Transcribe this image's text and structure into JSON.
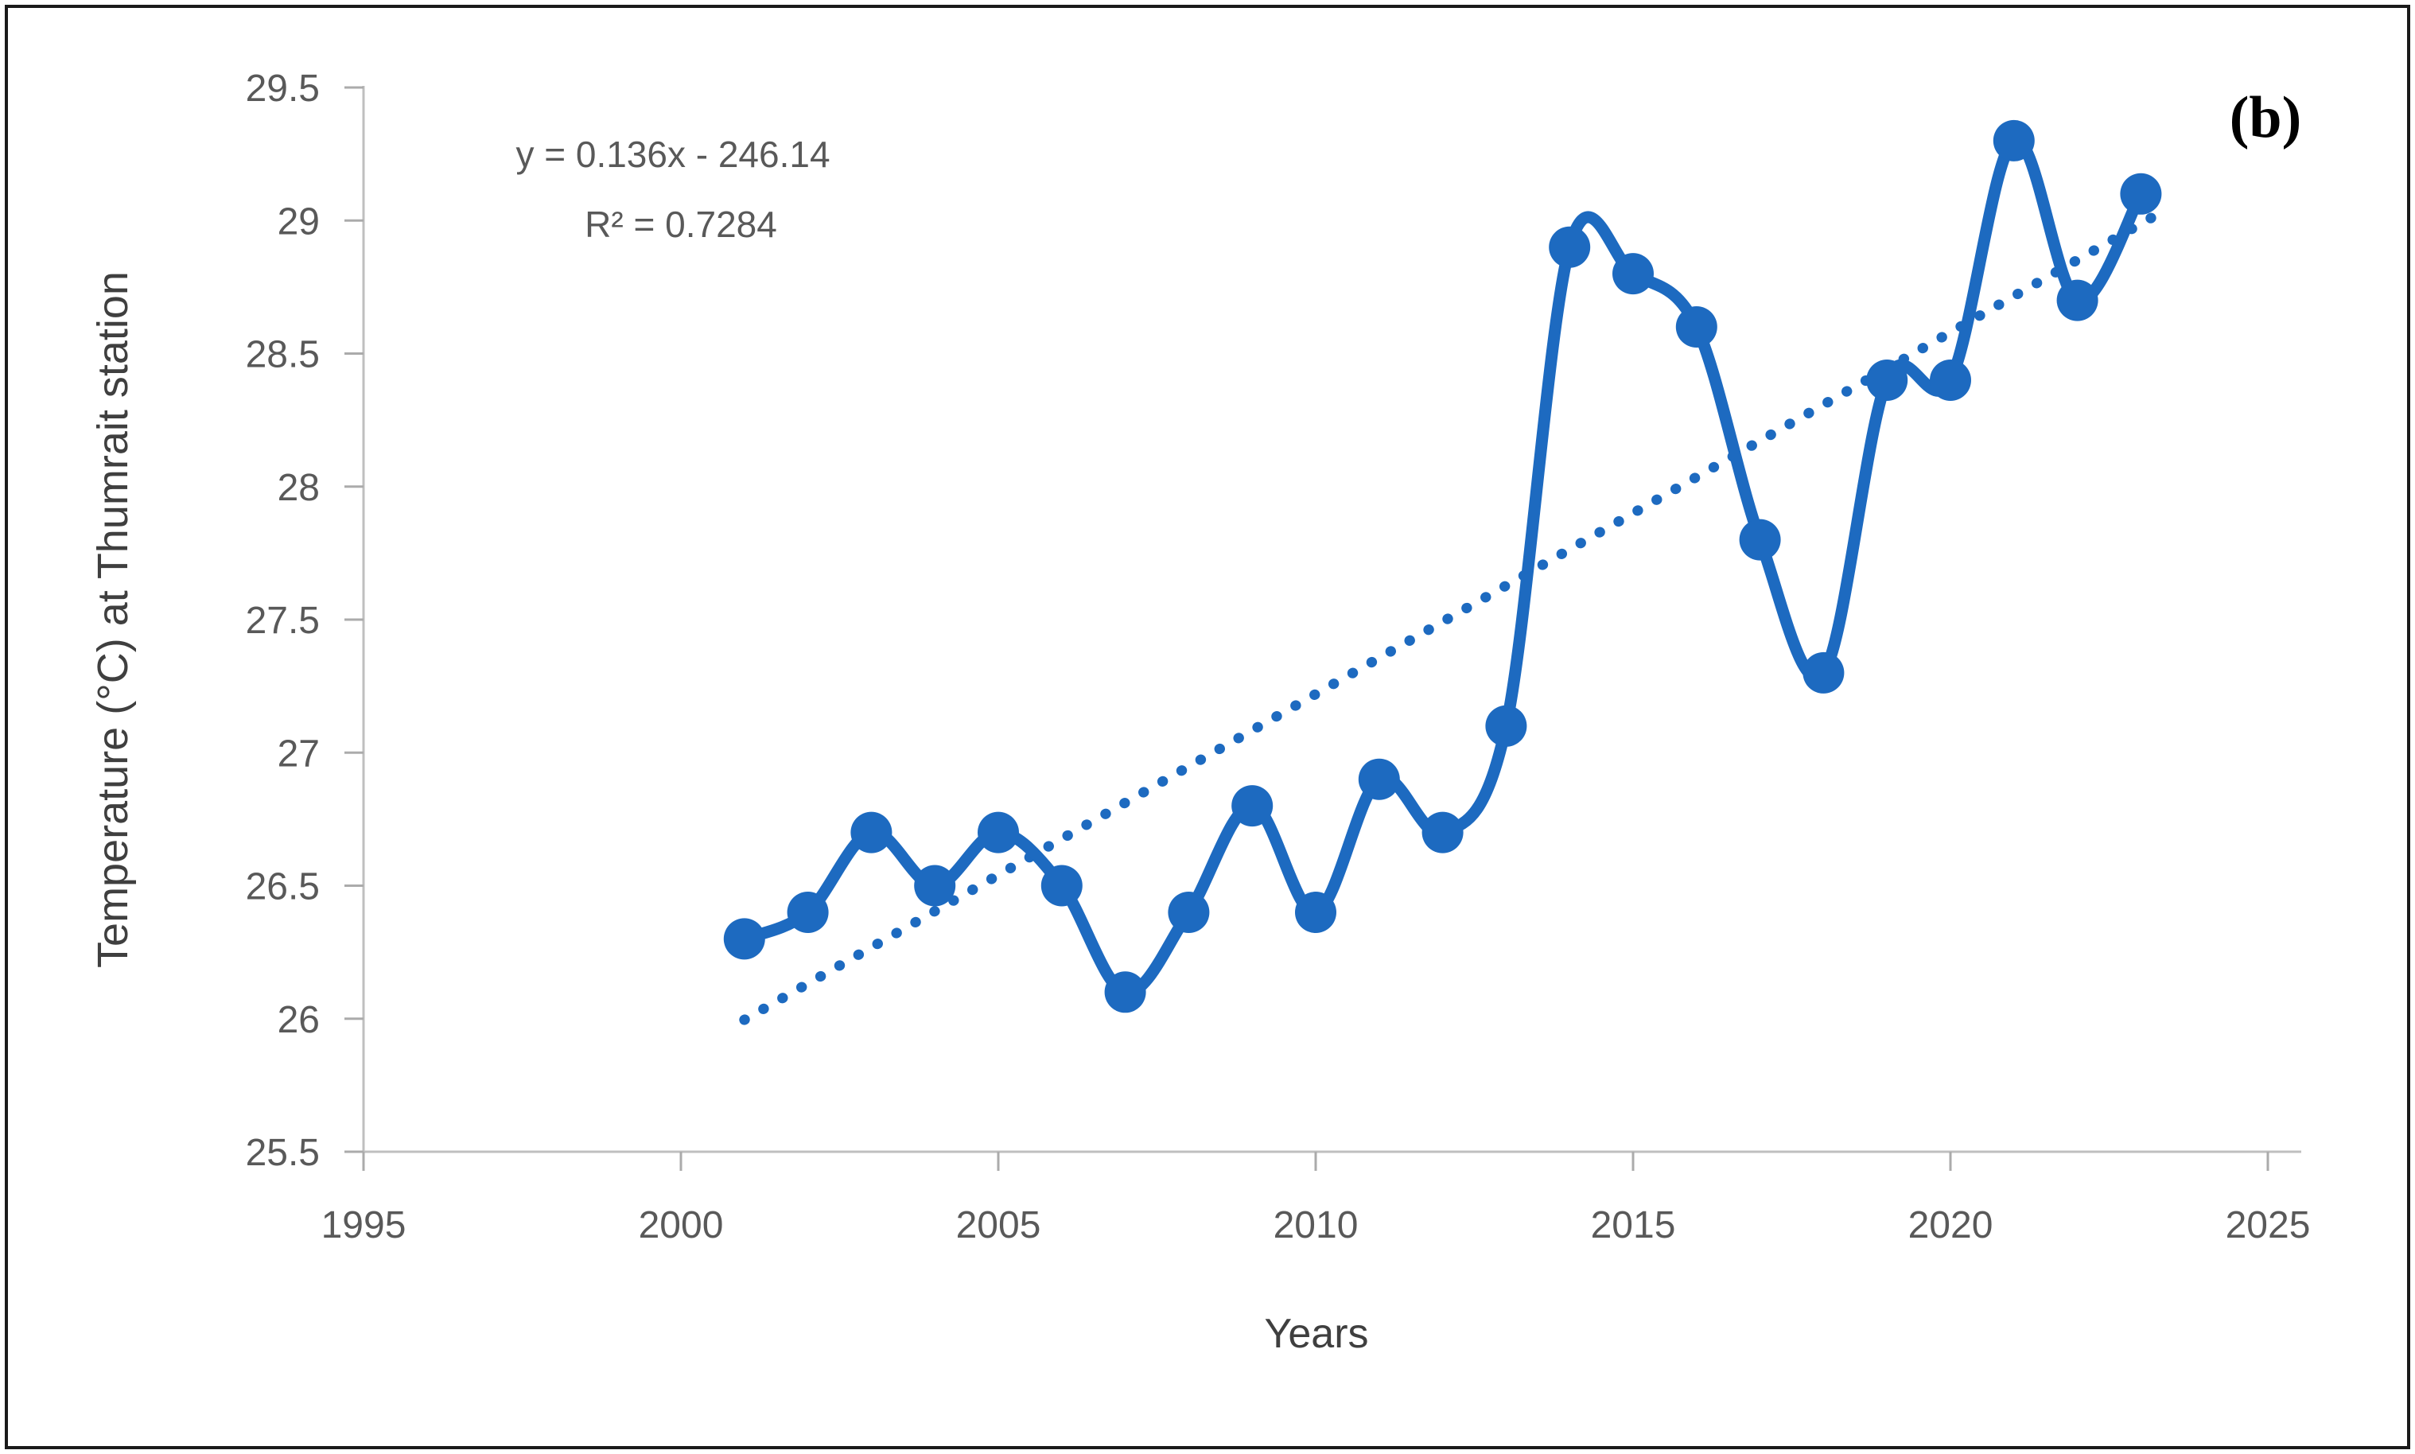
{
  "panel_label": "(b)",
  "annotation": {
    "equation": "y = 0.136x - 246.14",
    "r_squared": "R² = 0.7284"
  },
  "axes": {
    "x_label": "Years",
    "y_label": "Temperature (°C) at Thumrait station",
    "x_ticks": [
      "1995",
      "2000",
      "2005",
      "2010",
      "2015",
      "2020",
      "2025"
    ],
    "y_ticks": [
      "25.5",
      "26",
      "26.5",
      "27",
      "27.5",
      "28",
      "28.5",
      "29",
      "29.5"
    ]
  },
  "chart_data": {
    "type": "line",
    "x": [
      2001,
      2002,
      2003,
      2004,
      2005,
      2006,
      2007,
      2008,
      2009,
      2010,
      2011,
      2012,
      2013,
      2014,
      2015,
      2016,
      2017,
      2018,
      2019,
      2020,
      2021,
      2022,
      2023
    ],
    "series": [
      {
        "name": "Temperature (°C) at Thumrait station",
        "values": [
          26.3,
          26.4,
          26.7,
          26.5,
          26.7,
          26.5,
          26.1,
          26.4,
          26.8,
          26.4,
          26.9,
          26.7,
          27.1,
          28.9,
          28.8,
          28.6,
          27.8,
          27.3,
          28.4,
          28.4,
          29.3,
          28.7,
          29.1
        ]
      }
    ],
    "trendline": {
      "type": "linear",
      "slope": 0.136,
      "intercept": -246.14,
      "r2": 0.7284,
      "x_start": 2001,
      "x_end": 2023.2,
      "style": "dotted"
    },
    "title": "",
    "xlabel": "Years",
    "ylabel": "Temperature (°C) at Thumrait station",
    "xlim": [
      1995,
      2025
    ],
    "ylim": [
      25.5,
      29.5
    ],
    "grid": false,
    "legend": false,
    "marker": "circle",
    "smooth": true
  },
  "colors": {
    "series": "#1D6AC0",
    "axis_line": "#BFBFBF",
    "tick_mark": "#ABABAB",
    "tick_label": "#595959",
    "axis_title": "#3F3F3F",
    "annotation_text": "#595959",
    "panel_label": "#000000",
    "background": "#FFFFFF",
    "border": "#1A1A1A"
  }
}
